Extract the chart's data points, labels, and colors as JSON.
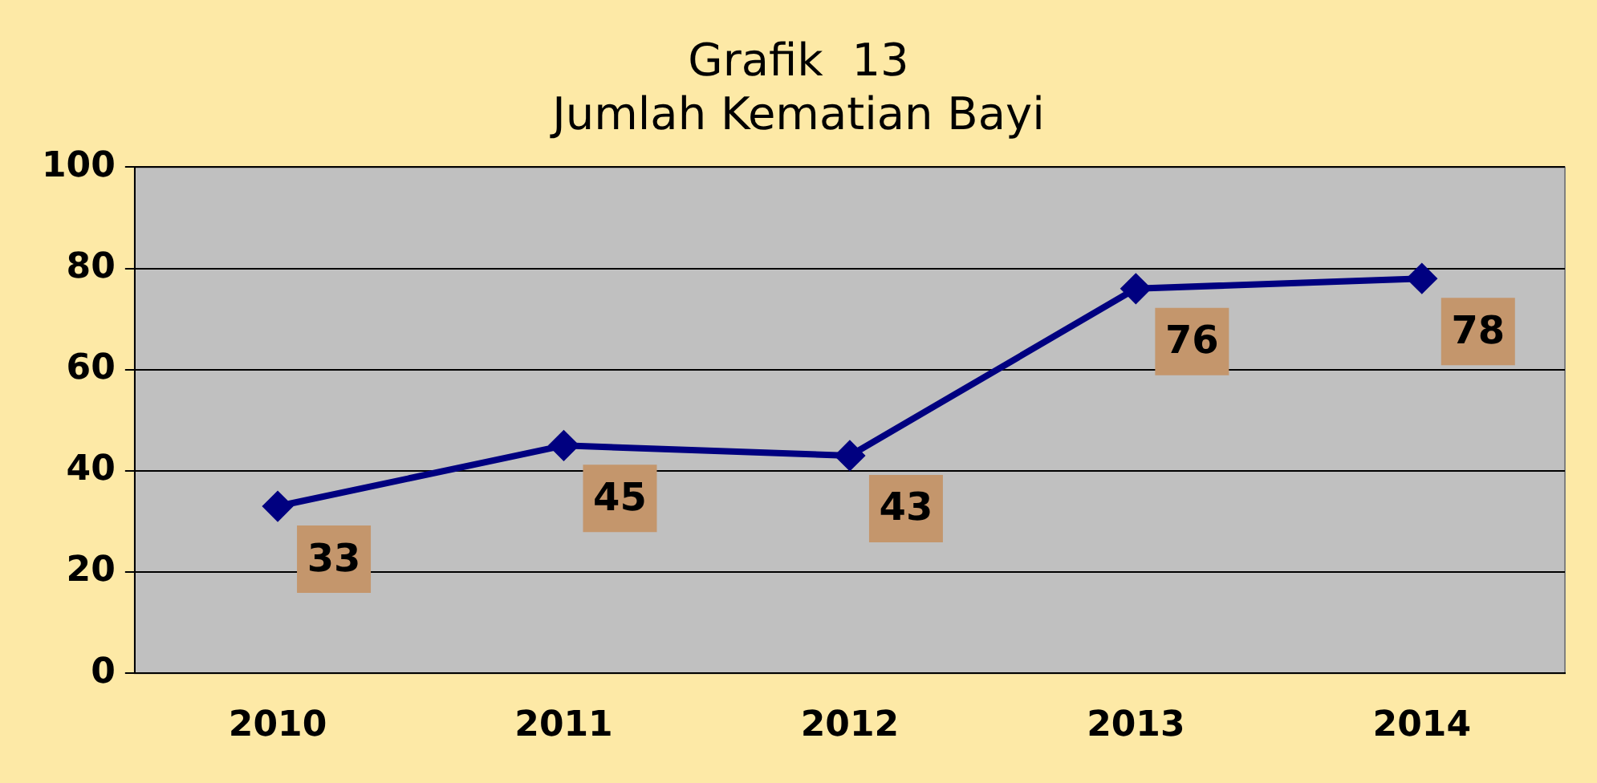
{
  "chart_data": {
    "type": "line",
    "title": "Grafik  13\nJumlah Kematian Bayi",
    "categories": [
      "2010",
      "2011",
      "2012",
      "2013",
      "2014"
    ],
    "series": [
      {
        "color": "#000080",
        "values": [
          33,
          45,
          43,
          76,
          78
        ]
      }
    ],
    "ylim": [
      0,
      100
    ],
    "yticks": [
      0,
      20,
      40,
      60,
      80,
      100
    ],
    "grid": "y",
    "legend": false,
    "marker": "diamond",
    "line_style": "solid",
    "data_labels": true
  }
}
